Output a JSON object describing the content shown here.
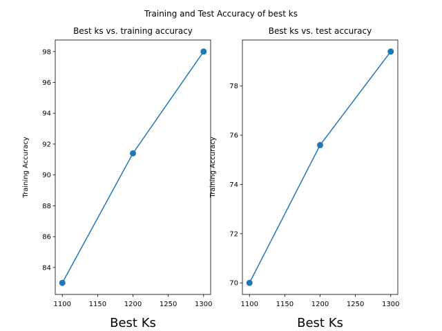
{
  "figure": {
    "suptitle": "Training and Test Accuracy of best ks"
  },
  "chart_data": [
    {
      "type": "line",
      "title": "Best ks vs. training accuracy",
      "xlabel": "Best Ks",
      "ylabel": "Training Accuracy",
      "x": [
        1100,
        1200,
        1300
      ],
      "series": [
        {
          "values": [
            83.0,
            91.4,
            98.0
          ]
        }
      ],
      "xlim": [
        1090,
        1310
      ],
      "ylim": [
        82.25,
        98.75
      ],
      "xticks": [
        1100,
        1150,
        1200,
        1250,
        1300
      ],
      "yticks": [
        84,
        86,
        88,
        90,
        92,
        94,
        96,
        98
      ],
      "marker": "circle",
      "color": "#1f77b4",
      "grid": false
    },
    {
      "type": "line",
      "title": "Best ks vs. test accuracy",
      "xlabel": "Best Ks",
      "ylabel": "Training Accuracy",
      "x": [
        1100,
        1200,
        1300
      ],
      "series": [
        {
          "values": [
            70.0,
            75.6,
            79.4
          ]
        }
      ],
      "xlim": [
        1090,
        1310
      ],
      "ylim": [
        69.53,
        79.87
      ],
      "xticks": [
        1100,
        1150,
        1200,
        1250,
        1300
      ],
      "yticks": [
        70,
        72,
        74,
        76,
        78
      ],
      "marker": "circle",
      "color": "#1f77b4",
      "grid": false
    }
  ]
}
